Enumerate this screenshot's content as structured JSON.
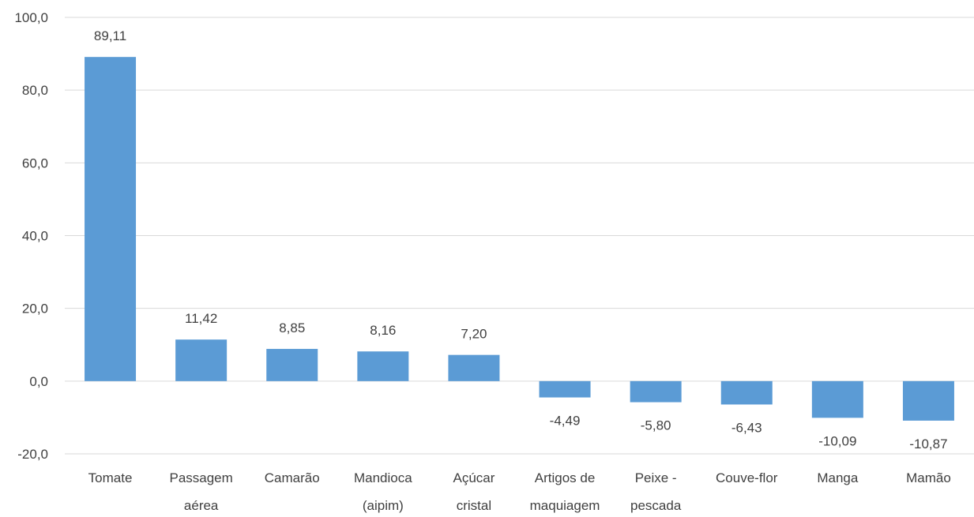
{
  "chart_data": {
    "type": "bar",
    "categories": [
      [
        "Tomate"
      ],
      [
        "Passagem",
        "aérea"
      ],
      [
        "Camarão"
      ],
      [
        "Mandioca",
        "(aipim)"
      ],
      [
        "Açúcar",
        "cristal"
      ],
      [
        "Artigos de",
        "maquiagem"
      ],
      [
        "Peixe -",
        "pescada"
      ],
      [
        "Couve-flor"
      ],
      [
        "Manga"
      ],
      [
        "Mamão"
      ]
    ],
    "values": [
      89.11,
      11.42,
      8.85,
      8.16,
      7.2,
      -4.49,
      -5.8,
      -6.43,
      -10.09,
      -10.87
    ],
    "value_labels": [
      "89,11",
      "11,42",
      "8,85",
      "8,16",
      "7,20",
      "-4,49",
      "-5,80",
      "-6,43",
      "-10,09",
      "-10,87"
    ],
    "title": "",
    "xlabel": "",
    "ylabel": "",
    "ylim": [
      -20,
      100
    ],
    "yticks": [
      100,
      80,
      60,
      40,
      20,
      0,
      -20
    ],
    "ytick_labels": [
      "100,0",
      "80,0",
      "60,0",
      "40,0",
      "20,0",
      "0,0",
      "-20,0"
    ],
    "grid": true,
    "legend": "none",
    "colors": {
      "bar": "#5b9bd5",
      "grid": "#d9d9d9",
      "text": "#404040"
    }
  }
}
